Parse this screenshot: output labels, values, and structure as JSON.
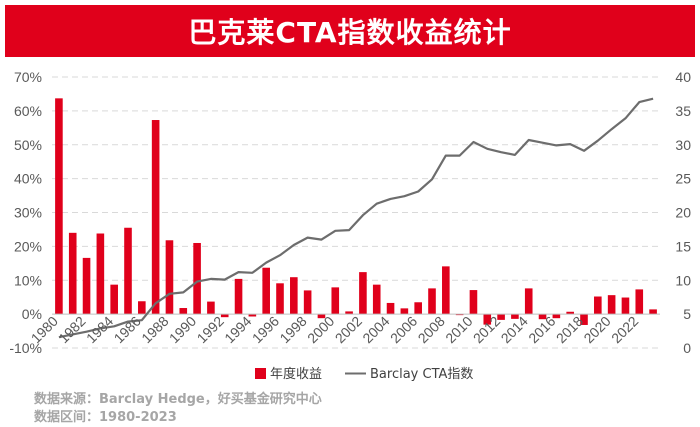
{
  "page": {
    "title": "巴克莱CTA指数收益统计",
    "source_line": "数据来源：Barclay Hedge，好买基金研究中心",
    "range_line": "数据区间：1980-2023"
  },
  "colors": {
    "bar": "#e0001b",
    "line": "#6d6d6d",
    "grid": "#d9d9d9",
    "text": "#595959"
  },
  "chart_data": {
    "type": "bar+line",
    "title": "巴克莱CTA指数收益统计",
    "categories": [
      1980,
      1981,
      1982,
      1983,
      1984,
      1985,
      1986,
      1987,
      1988,
      1989,
      1990,
      1991,
      1992,
      1993,
      1994,
      1995,
      1996,
      1997,
      1998,
      1999,
      2000,
      2001,
      2002,
      2003,
      2004,
      2005,
      2006,
      2007,
      2008,
      2009,
      2010,
      2011,
      2012,
      2013,
      2014,
      2015,
      2016,
      2017,
      2018,
      2019,
      2020,
      2021,
      2022,
      2023
    ],
    "x_tick_labels": [
      "1980",
      "1982",
      "1984",
      "1986",
      "1988",
      "1990",
      "1992",
      "1994",
      "1996",
      "1998",
      "2000",
      "2002",
      "2004",
      "2006",
      "2008",
      "2010",
      "2012",
      "2014",
      "2016",
      "2018",
      "2020",
      "2022"
    ],
    "series": [
      {
        "name": "年度收益",
        "type": "bar",
        "axis": "left",
        "unit": "%",
        "values": [
          63.7,
          24.0,
          16.6,
          23.8,
          8.7,
          25.5,
          3.8,
          57.3,
          21.8,
          1.8,
          21.0,
          3.7,
          -0.9,
          10.4,
          -0.7,
          13.7,
          9.1,
          10.9,
          7.0,
          -1.2,
          7.9,
          0.8,
          12.4,
          8.7,
          3.3,
          1.7,
          3.5,
          7.6,
          14.1,
          -0.1,
          7.1,
          -3.1,
          -1.7,
          -1.4,
          7.6,
          -1.5,
          -1.2,
          0.7,
          -3.2,
          5.2,
          5.6,
          4.9,
          7.3,
          1.4
        ]
      },
      {
        "name": "Barclay CTA指数",
        "type": "line",
        "axis": "right",
        "values": [
          1.6,
          2.0,
          2.4,
          2.9,
          3.2,
          3.9,
          4.1,
          6.6,
          8.0,
          8.2,
          9.8,
          10.2,
          10.1,
          11.2,
          11.1,
          12.6,
          13.7,
          15.2,
          16.3,
          16.0,
          17.3,
          17.4,
          19.6,
          21.3,
          22.0,
          22.4,
          23.1,
          24.9,
          28.4,
          28.4,
          30.4,
          29.4,
          28.9,
          28.5,
          30.7,
          30.3,
          29.9,
          30.1,
          29.1,
          30.6,
          32.3,
          33.9,
          36.3,
          36.8
        ]
      }
    ],
    "y_left": {
      "min": -10,
      "max": 70,
      "ticks": [
        "-10%",
        "0%",
        "10%",
        "20%",
        "30%",
        "40%",
        "50%",
        "60%",
        "70%"
      ]
    },
    "y_right": {
      "min": 0,
      "max": 40,
      "ticks": [
        "0",
        "5",
        "10",
        "15",
        "20",
        "25",
        "30",
        "35",
        "40"
      ]
    },
    "legend": {
      "position": "bottom-center",
      "bar_label": "年度收益",
      "line_label": "Barclay CTA指数"
    },
    "grid": true
  }
}
